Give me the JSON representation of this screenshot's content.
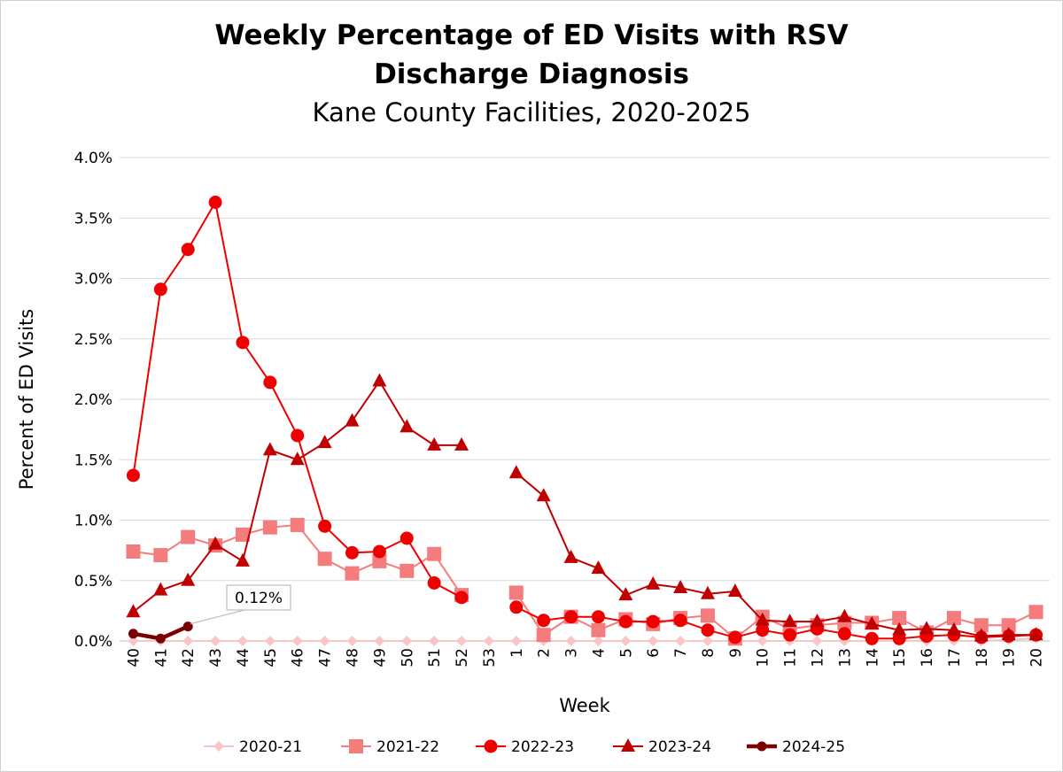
{
  "chart_data": {
    "type": "line",
    "title": "Weekly Percentage of ED Visits with RSV Discharge Diagnosis",
    "title_line1": "Weekly Percentage of ED Visits with RSV",
    "title_line2": "Discharge Diagnosis",
    "subtitle": "Kane County Facilities, 2020-2025",
    "xlabel": "Week",
    "ylabel": "Percent of ED Visits",
    "ylim": [
      0,
      4.0
    ],
    "ytick_values": [
      0,
      0.5,
      1.0,
      1.5,
      2.0,
      2.5,
      3.0,
      3.5,
      4.0
    ],
    "ytick_labels": [
      "0.0%",
      "0.5%",
      "1.0%",
      "1.5%",
      "2.0%",
      "2.5%",
      "3.0%",
      "3.5%",
      "4.0%"
    ],
    "categories": [
      "40",
      "41",
      "42",
      "43",
      "44",
      "45",
      "46",
      "47",
      "48",
      "49",
      "50",
      "51",
      "52",
      "53",
      "1",
      "2",
      "3",
      "4",
      "5",
      "6",
      "7",
      "8",
      "9",
      "10",
      "11",
      "12",
      "13",
      "14",
      "15",
      "16",
      "17",
      "18",
      "19",
      "20"
    ],
    "grid": "horizontal",
    "legend_position": "bottom",
    "series": [
      {
        "name": "2020-21",
        "color": "#f9c6c6",
        "marker": "diamond",
        "values": [
          0,
          0,
          0,
          0,
          0,
          0,
          0,
          0,
          0,
          0,
          0,
          0,
          0,
          0,
          0,
          0,
          0,
          0,
          0,
          0,
          0,
          0,
          0,
          0,
          0,
          0,
          0,
          0,
          0,
          0,
          0,
          0,
          0.01,
          0.02
        ]
      },
      {
        "name": "2021-22",
        "color": "#f47c7c",
        "marker": "square",
        "values": [
          0.74,
          0.71,
          0.86,
          0.79,
          0.88,
          0.94,
          0.96,
          0.68,
          0.56,
          0.66,
          0.58,
          0.72,
          0.38,
          null,
          0.4,
          0.05,
          0.2,
          0.09,
          0.18,
          0.14,
          0.19,
          0.21,
          0.02,
          0.2,
          0.1,
          0.13,
          0.15,
          0.15,
          0.19,
          0.07,
          0.19,
          0.13,
          0.13,
          0.24
        ]
      },
      {
        "name": "2022-23",
        "color": "#ee0000",
        "marker": "circle",
        "values": [
          1.37,
          2.91,
          3.24,
          3.63,
          2.47,
          2.14,
          1.7,
          0.95,
          0.73,
          0.74,
          0.85,
          0.48,
          0.36,
          null,
          0.28,
          0.17,
          0.2,
          0.2,
          0.16,
          0.16,
          0.17,
          0.09,
          0.03,
          0.09,
          0.05,
          0.1,
          0.06,
          0.02,
          0.02,
          0.04,
          0.05,
          0.03,
          0.04,
          0.05
        ]
      },
      {
        "name": "2023-24",
        "color": "#c00000",
        "marker": "triangle",
        "values": [
          0.24,
          0.42,
          0.5,
          0.8,
          0.66,
          1.58,
          1.5,
          1.64,
          1.82,
          2.15,
          1.77,
          1.62,
          1.62,
          null,
          1.39,
          1.2,
          0.69,
          0.6,
          0.38,
          0.47,
          0.44,
          0.39,
          0.41,
          0.17,
          0.16,
          0.16,
          0.2,
          0.14,
          0.09,
          0.1,
          0.09,
          0.04,
          0.05,
          0.05
        ]
      },
      {
        "name": "2024-25",
        "color": "#7b0000",
        "marker": "circle-small",
        "values": [
          0.06,
          0.02,
          0.12,
          null,
          null,
          null,
          null,
          null,
          null,
          null,
          null,
          null,
          null,
          null,
          null,
          null,
          null,
          null,
          null,
          null,
          null,
          null,
          null,
          null,
          null,
          null,
          null,
          null,
          null,
          null,
          null,
          null,
          null,
          null
        ]
      }
    ],
    "annotations": [
      {
        "text": "0.12%",
        "series": "2024-25",
        "category": "42",
        "value": 0.12
      }
    ]
  }
}
